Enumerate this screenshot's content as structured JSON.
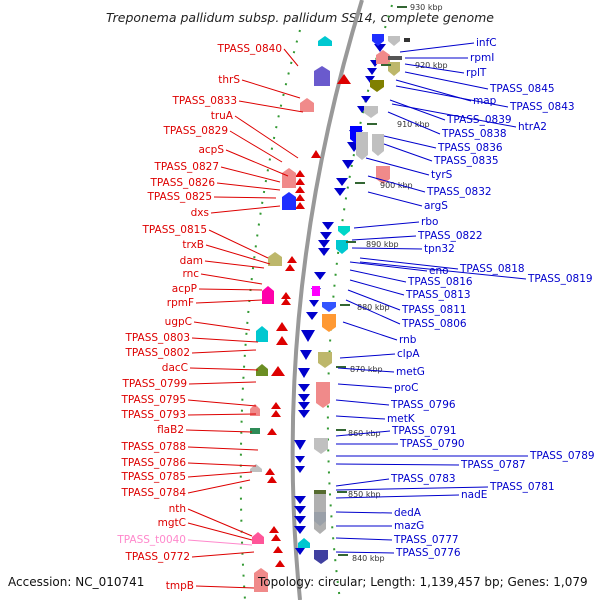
{
  "title": "Treponema pallidum subsp. pallidum SS14, complete genome",
  "accession": "Accession: NC_010741",
  "topology": "Topology: circular; Length: 1,139,457 bp; Genes: 1,079",
  "colors": {
    "forward": "#0000cc",
    "reverse": "#dd0000",
    "trna": "#ff88cc",
    "backbone": "#999999",
    "dots": "#339933"
  },
  "ticks": [
    "930 kbp",
    "920 kbp",
    "910 kbp",
    "900 kbp",
    "890 kbp",
    "880 kbp",
    "870 kbp",
    "860 kbp",
    "850 kbp",
    "840 kbp"
  ],
  "left_labels": [
    {
      "text": "TPASS_0840",
      "type": "cds"
    },
    {
      "text": "thrS",
      "type": "cds"
    },
    {
      "text": "TPASS_0833",
      "type": "cds"
    },
    {
      "text": "truA",
      "type": "cds"
    },
    {
      "text": "TPASS_0829",
      "type": "cds"
    },
    {
      "text": "acpS",
      "type": "cds"
    },
    {
      "text": "TPASS_0827",
      "type": "cds"
    },
    {
      "text": "TPASS_0826",
      "type": "cds"
    },
    {
      "text": "TPASS_0825",
      "type": "cds"
    },
    {
      "text": "dxs",
      "type": "cds"
    },
    {
      "text": "TPASS_0815",
      "type": "cds"
    },
    {
      "text": "trxB",
      "type": "cds"
    },
    {
      "text": "dam",
      "type": "cds"
    },
    {
      "text": "rnc",
      "type": "cds"
    },
    {
      "text": "acpP",
      "type": "cds"
    },
    {
      "text": "rpmF",
      "type": "cds"
    },
    {
      "text": "ugpC",
      "type": "cds"
    },
    {
      "text": "TPASS_0803",
      "type": "cds"
    },
    {
      "text": "TPASS_0802",
      "type": "cds"
    },
    {
      "text": "dacC",
      "type": "cds"
    },
    {
      "text": "TPASS_0799",
      "type": "cds"
    },
    {
      "text": "TPASS_0795",
      "type": "cds"
    },
    {
      "text": "TPASS_0793",
      "type": "cds"
    },
    {
      "text": "flaB2",
      "type": "cds"
    },
    {
      "text": "TPASS_0788",
      "type": "cds"
    },
    {
      "text": "TPASS_0786",
      "type": "cds"
    },
    {
      "text": "TPASS_0785",
      "type": "cds"
    },
    {
      "text": "TPASS_0784",
      "type": "cds"
    },
    {
      "text": "nth",
      "type": "cds"
    },
    {
      "text": "mgtC",
      "type": "cds"
    },
    {
      "text": "TPASS_t0040",
      "type": "trna"
    },
    {
      "text": "TPASS_0772",
      "type": "cds"
    },
    {
      "text": "tmpB",
      "type": "cds"
    }
  ],
  "right_labels": [
    {
      "text": "infC"
    },
    {
      "text": "rpmI"
    },
    {
      "text": "rplT"
    },
    {
      "text": "TPASS_0845"
    },
    {
      "text": "map"
    },
    {
      "text": "TPASS_0843"
    },
    {
      "text": "TPASS_0839"
    },
    {
      "text": "htrA2"
    },
    {
      "text": "TPASS_0838"
    },
    {
      "text": "TPASS_0836"
    },
    {
      "text": "TPASS_0835"
    },
    {
      "text": "tyrS"
    },
    {
      "text": "TPASS_0832"
    },
    {
      "text": "argS"
    },
    {
      "text": "rbo"
    },
    {
      "text": "TPASS_0822"
    },
    {
      "text": "tpn32"
    },
    {
      "text": "TPASS_0818"
    },
    {
      "text": "eno"
    },
    {
      "text": "TPASS_0819"
    },
    {
      "text": "TPASS_0816"
    },
    {
      "text": "TPASS_0813"
    },
    {
      "text": "TPASS_0811"
    },
    {
      "text": "TPASS_0806"
    },
    {
      "text": "rnb"
    },
    {
      "text": "clpA"
    },
    {
      "text": "metG"
    },
    {
      "text": "proC"
    },
    {
      "text": "TPASS_0796"
    },
    {
      "text": "metK"
    },
    {
      "text": "TPASS_0791"
    },
    {
      "text": "TPASS_0790"
    },
    {
      "text": "TPASS_0789"
    },
    {
      "text": "TPASS_0787"
    },
    {
      "text": "TPASS_0783"
    },
    {
      "text": "TPASS_0781"
    },
    {
      "text": "nadE"
    },
    {
      "text": "dedA"
    },
    {
      "text": "mazG"
    },
    {
      "text": "TPASS_0777"
    },
    {
      "text": "TPASS_0776"
    }
  ]
}
